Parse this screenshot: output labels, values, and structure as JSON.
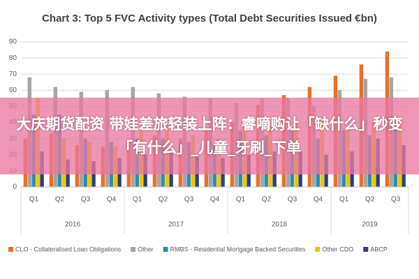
{
  "chart_data": {
    "type": "bar",
    "title": "Chart 3: Top 5 FVC Activity types (Total Debt Securities Issued €bn)",
    "groups": [
      {
        "label": "2016",
        "categories": [
          "Q1",
          "Q2",
          "Q3",
          "Q4"
        ]
      },
      {
        "label": "2017",
        "categories": [
          "Q1",
          "Q2",
          "Q3",
          "Q4"
        ]
      },
      {
        "label": "2018",
        "categories": [
          "Q1",
          "Q2",
          "Q3",
          "Q4"
        ]
      },
      {
        "label": "2019",
        "categories": [
          "Q1",
          "Q2",
          "Q3"
        ]
      }
    ],
    "series": [
      {
        "name": "CLO - Collateralised Loan Obligations",
        "color": "#e8702a",
        "values": [
          30,
          33,
          26,
          25,
          28,
          32,
          30,
          35,
          40,
          51,
          57,
          62,
          69,
          76,
          84
        ]
      },
      {
        "name": "Other",
        "color": "#a5a5a5",
        "values": [
          68,
          62,
          59,
          60,
          62,
          58,
          56,
          55,
          52,
          55,
          55,
          50,
          60,
          67,
          68
        ]
      },
      {
        "name": "RMBS - Residential Mortgage Backed Securities",
        "color": "#2a8cb4",
        "values": [
          45,
          45,
          30,
          28,
          30,
          30,
          28,
          27,
          35,
          32,
          35,
          30,
          35,
          32,
          40
        ]
      },
      {
        "name": "Other CDO",
        "color": "#f2c200",
        "values": [
          55,
          30,
          28,
          25,
          35,
          38,
          32,
          30,
          38,
          38,
          40,
          42,
          38,
          40,
          42
        ]
      },
      {
        "name": "ABCP",
        "color": "#264478",
        "values": [
          22,
          17,
          16,
          18,
          20,
          22,
          20,
          18,
          20,
          22,
          22,
          20,
          22,
          30,
          26
        ]
      }
    ],
    "ylim": [
      0,
      90
    ],
    "yticks": [
      0,
      10,
      20,
      30,
      40,
      50,
      60,
      70,
      80,
      90
    ],
    "grid": true
  },
  "overlay": {
    "text": "大庆期货配资 带娃差旅轻装上阵：睿嘀购让「缺什么」秒变「有什么」_儿童_牙刷_下单"
  }
}
